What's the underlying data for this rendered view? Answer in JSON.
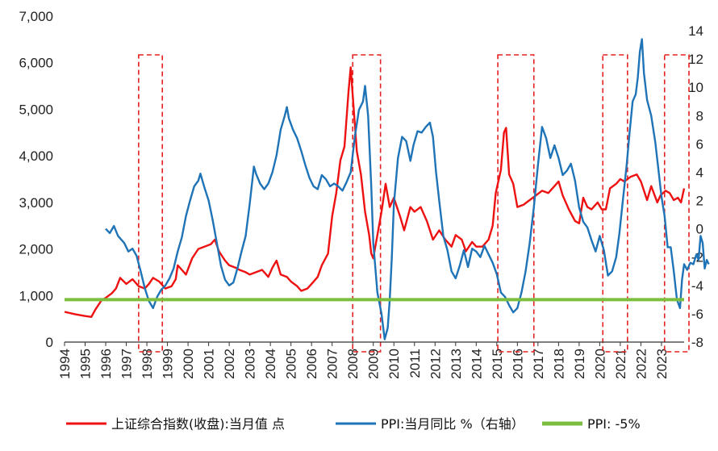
{
  "chart_data": {
    "type": "line",
    "title": "",
    "xlabel": "",
    "ylabel": "",
    "y2label": "",
    "x_ticks": [
      "1994",
      "1995",
      "1996",
      "1997",
      "1998",
      "1999",
      "2000",
      "2001",
      "2002",
      "2003",
      "2004",
      "2005",
      "2006",
      "2007",
      "2008",
      "2009",
      "2010",
      "2011",
      "2012",
      "2013",
      "2014",
      "2015",
      "2016",
      "2017",
      "2018",
      "2019",
      "2020",
      "2021",
      "2022",
      "2023"
    ],
    "x_range": [
      1994.0,
      2024.1
    ],
    "ylim": [
      0,
      7000
    ],
    "y_ticks": [
      "0",
      "1,000",
      "2,000",
      "3,000",
      "4,000",
      "5,000",
      "6,000",
      "7,000"
    ],
    "y2lim": [
      -8,
      14
    ],
    "y2_ticks": [
      "-8",
      "-6",
      "-4",
      "-2",
      "0",
      "2",
      "4",
      "6",
      "8",
      "10",
      "12",
      "14"
    ],
    "grid": false,
    "legend_position": "bottom",
    "colors": {
      "index": "#ee1111",
      "ppi": "#1f73b7",
      "ppi_line": "#7cbf3f",
      "box": "#e52020"
    },
    "series": [
      {
        "name": "上证综合指数(收盘):当月值 点",
        "axis": "left",
        "points": [
          [
            1994.0,
            650
          ],
          [
            1994.5,
            600
          ],
          [
            1995.0,
            560
          ],
          [
            1995.3,
            540
          ],
          [
            1995.5,
            700
          ],
          [
            1995.8,
            900
          ],
          [
            1996.0,
            950
          ],
          [
            1996.3,
            1050
          ],
          [
            1996.5,
            1150
          ],
          [
            1996.7,
            1380
          ],
          [
            1997.0,
            1250
          ],
          [
            1997.3,
            1350
          ],
          [
            1997.6,
            1200
          ],
          [
            1997.9,
            1150
          ],
          [
            1998.1,
            1250
          ],
          [
            1998.3,
            1380
          ],
          [
            1998.6,
            1300
          ],
          [
            1998.9,
            1150
          ],
          [
            1999.2,
            1200
          ],
          [
            1999.4,
            1350
          ],
          [
            1999.5,
            1650
          ],
          [
            1999.7,
            1550
          ],
          [
            1999.9,
            1450
          ],
          [
            2000.2,
            1800
          ],
          [
            2000.5,
            2000
          ],
          [
            2000.8,
            2050
          ],
          [
            2001.1,
            2100
          ],
          [
            2001.3,
            2200
          ],
          [
            2001.5,
            1950
          ],
          [
            2001.8,
            1750
          ],
          [
            2002.0,
            1650
          ],
          [
            2002.3,
            1600
          ],
          [
            2002.5,
            1550
          ],
          [
            2002.8,
            1500
          ],
          [
            2003.0,
            1450
          ],
          [
            2003.3,
            1500
          ],
          [
            2003.6,
            1550
          ],
          [
            2003.9,
            1400
          ],
          [
            2004.1,
            1600
          ],
          [
            2004.3,
            1750
          ],
          [
            2004.5,
            1450
          ],
          [
            2004.8,
            1400
          ],
          [
            2005.0,
            1300
          ],
          [
            2005.3,
            1200
          ],
          [
            2005.5,
            1100
          ],
          [
            2005.8,
            1150
          ],
          [
            2006.0,
            1250
          ],
          [
            2006.3,
            1400
          ],
          [
            2006.5,
            1650
          ],
          [
            2006.8,
            1900
          ],
          [
            2007.0,
            2700
          ],
          [
            2007.2,
            3200
          ],
          [
            2007.4,
            3900
          ],
          [
            2007.6,
            4200
          ],
          [
            2007.8,
            5400
          ],
          [
            2007.9,
            5900
          ],
          [
            2008.0,
            5300
          ],
          [
            2008.2,
            4100
          ],
          [
            2008.4,
            3600
          ],
          [
            2008.6,
            2800
          ],
          [
            2008.8,
            2300
          ],
          [
            2008.9,
            1900
          ],
          [
            2009.0,
            1800
          ],
          [
            2009.2,
            2300
          ],
          [
            2009.4,
            2800
          ],
          [
            2009.6,
            3400
          ],
          [
            2009.8,
            2900
          ],
          [
            2010.0,
            3100
          ],
          [
            2010.3,
            2700
          ],
          [
            2010.5,
            2400
          ],
          [
            2010.8,
            2900
          ],
          [
            2011.0,
            2800
          ],
          [
            2011.3,
            2900
          ],
          [
            2011.6,
            2600
          ],
          [
            2011.9,
            2200
          ],
          [
            2012.2,
            2400
          ],
          [
            2012.5,
            2200
          ],
          [
            2012.8,
            2050
          ],
          [
            2013.0,
            2300
          ],
          [
            2013.3,
            2200
          ],
          [
            2013.5,
            1950
          ],
          [
            2013.8,
            2150
          ],
          [
            2014.0,
            2050
          ],
          [
            2014.3,
            2050
          ],
          [
            2014.6,
            2200
          ],
          [
            2014.8,
            2500
          ],
          [
            2014.95,
            3200
          ],
          [
            2015.2,
            3700
          ],
          [
            2015.35,
            4500
          ],
          [
            2015.45,
            4600
          ],
          [
            2015.6,
            3600
          ],
          [
            2015.8,
            3400
          ],
          [
            2016.0,
            2900
          ],
          [
            2016.3,
            2950
          ],
          [
            2016.6,
            3050
          ],
          [
            2016.9,
            3150
          ],
          [
            2017.2,
            3250
          ],
          [
            2017.5,
            3200
          ],
          [
            2017.8,
            3350
          ],
          [
            2018.0,
            3450
          ],
          [
            2018.2,
            3150
          ],
          [
            2018.5,
            2850
          ],
          [
            2018.8,
            2600
          ],
          [
            2019.0,
            2550
          ],
          [
            2019.2,
            3100
          ],
          [
            2019.4,
            2900
          ],
          [
            2019.6,
            2850
          ],
          [
            2019.9,
            3000
          ],
          [
            2020.1,
            2850
          ],
          [
            2020.3,
            2850
          ],
          [
            2020.5,
            3300
          ],
          [
            2020.8,
            3400
          ],
          [
            2021.0,
            3500
          ],
          [
            2021.2,
            3450
          ],
          [
            2021.5,
            3550
          ],
          [
            2021.8,
            3600
          ],
          [
            2022.0,
            3450
          ],
          [
            2022.3,
            3050
          ],
          [
            2022.5,
            3350
          ],
          [
            2022.8,
            3000
          ],
          [
            2022.95,
            3150
          ],
          [
            2023.2,
            3250
          ],
          [
            2023.4,
            3200
          ],
          [
            2023.6,
            3050
          ],
          [
            2023.8,
            3100
          ],
          [
            2023.95,
            3000
          ],
          [
            2024.1,
            3300
          ]
        ]
      },
      {
        "name": "PPI:当月同比 %（右轴）",
        "axis": "right",
        "points": [
          [
            1996.0,
            0.0
          ],
          [
            1996.2,
            -0.3
          ],
          [
            1996.4,
            0.2
          ],
          [
            1996.6,
            -0.5
          ],
          [
            1996.9,
            -1.0
          ],
          [
            1997.1,
            -1.6
          ],
          [
            1997.3,
            -1.4
          ],
          [
            1997.5,
            -1.9
          ],
          [
            1997.7,
            -3.0
          ],
          [
            1997.9,
            -4.2
          ],
          [
            1998.1,
            -5.1
          ],
          [
            1998.3,
            -5.6
          ],
          [
            1998.5,
            -4.8
          ],
          [
            1998.7,
            -4.3
          ],
          [
            1998.9,
            -4.0
          ],
          [
            1999.1,
            -3.5
          ],
          [
            1999.3,
            -2.8
          ],
          [
            1999.5,
            -1.6
          ],
          [
            1999.7,
            -0.6
          ],
          [
            1999.9,
            0.9
          ],
          [
            2000.1,
            2.0
          ],
          [
            2000.3,
            3.0
          ],
          [
            2000.5,
            3.4
          ],
          [
            2000.6,
            3.9
          ],
          [
            2000.8,
            2.9
          ],
          [
            2001.0,
            2.0
          ],
          [
            2001.2,
            0.6
          ],
          [
            2001.4,
            -1.0
          ],
          [
            2001.6,
            -2.6
          ],
          [
            2001.8,
            -3.6
          ],
          [
            2002.0,
            -4.0
          ],
          [
            2002.2,
            -3.8
          ],
          [
            2002.4,
            -2.8
          ],
          [
            2002.6,
            -1.6
          ],
          [
            2002.8,
            -0.5
          ],
          [
            2003.0,
            1.8
          ],
          [
            2003.2,
            4.4
          ],
          [
            2003.3,
            3.9
          ],
          [
            2003.5,
            3.2
          ],
          [
            2003.7,
            2.8
          ],
          [
            2003.9,
            3.2
          ],
          [
            2004.1,
            4.0
          ],
          [
            2004.3,
            5.2
          ],
          [
            2004.5,
            7.0
          ],
          [
            2004.7,
            8.0
          ],
          [
            2004.8,
            8.6
          ],
          [
            2004.9,
            7.8
          ],
          [
            2005.1,
            7.0
          ],
          [
            2005.3,
            6.4
          ],
          [
            2005.5,
            5.5
          ],
          [
            2005.7,
            4.5
          ],
          [
            2005.9,
            3.6
          ],
          [
            2006.1,
            3.0
          ],
          [
            2006.3,
            2.8
          ],
          [
            2006.5,
            3.8
          ],
          [
            2006.7,
            3.5
          ],
          [
            2006.9,
            3.0
          ],
          [
            2007.1,
            3.2
          ],
          [
            2007.3,
            3.0
          ],
          [
            2007.5,
            2.7
          ],
          [
            2007.7,
            3.3
          ],
          [
            2007.9,
            4.0
          ],
          [
            2008.1,
            6.5
          ],
          [
            2008.3,
            8.4
          ],
          [
            2008.5,
            9.0
          ],
          [
            2008.6,
            10.1
          ],
          [
            2008.75,
            8.0
          ],
          [
            2008.9,
            3.0
          ],
          [
            2009.0,
            -1.0
          ],
          [
            2009.2,
            -4.5
          ],
          [
            2009.4,
            -6.0
          ],
          [
            2009.55,
            -7.8
          ],
          [
            2009.7,
            -7.0
          ],
          [
            2009.8,
            -5.0
          ],
          [
            2009.9,
            -2.0
          ],
          [
            2010.0,
            1.7
          ],
          [
            2010.2,
            5.0
          ],
          [
            2010.4,
            6.5
          ],
          [
            2010.6,
            6.2
          ],
          [
            2010.8,
            4.8
          ],
          [
            2010.95,
            5.9
          ],
          [
            2011.15,
            6.9
          ],
          [
            2011.35,
            6.8
          ],
          [
            2011.55,
            7.2
          ],
          [
            2011.75,
            7.5
          ],
          [
            2011.9,
            6.5
          ],
          [
            2012.05,
            4.0
          ],
          [
            2012.2,
            2.0
          ],
          [
            2012.4,
            -0.5
          ],
          [
            2012.6,
            -1.5
          ],
          [
            2012.8,
            -3.0
          ],
          [
            2013.0,
            -3.5
          ],
          [
            2013.2,
            -2.6
          ],
          [
            2013.4,
            -1.5
          ],
          [
            2013.6,
            -2.7
          ],
          [
            2013.8,
            -1.4
          ],
          [
            2014.0,
            -1.6
          ],
          [
            2014.2,
            -2.0
          ],
          [
            2014.4,
            -1.2
          ],
          [
            2014.6,
            -1.8
          ],
          [
            2014.8,
            -2.4
          ],
          [
            2015.0,
            -3.2
          ],
          [
            2015.2,
            -4.5
          ],
          [
            2015.4,
            -4.8
          ],
          [
            2015.6,
            -5.4
          ],
          [
            2015.8,
            -5.9
          ],
          [
            2016.0,
            -5.6
          ],
          [
            2016.2,
            -4.5
          ],
          [
            2016.4,
            -3.0
          ],
          [
            2016.6,
            -1.0
          ],
          [
            2016.8,
            1.5
          ],
          [
            2017.0,
            4.5
          ],
          [
            2017.2,
            7.2
          ],
          [
            2017.4,
            6.4
          ],
          [
            2017.6,
            5.0
          ],
          [
            2017.8,
            5.9
          ],
          [
            2018.0,
            5.0
          ],
          [
            2018.2,
            3.8
          ],
          [
            2018.4,
            4.1
          ],
          [
            2018.6,
            4.6
          ],
          [
            2018.8,
            3.4
          ],
          [
            2019.0,
            1.5
          ],
          [
            2019.2,
            0.5
          ],
          [
            2019.4,
            0.1
          ],
          [
            2019.6,
            -0.8
          ],
          [
            2019.8,
            -1.6
          ],
          [
            2020.0,
            -0.5
          ],
          [
            2020.2,
            -1.5
          ],
          [
            2020.4,
            -3.3
          ],
          [
            2020.6,
            -3.0
          ],
          [
            2020.8,
            -2.0
          ],
          [
            2020.95,
            -0.4
          ],
          [
            2021.1,
            1.7
          ],
          [
            2021.3,
            4.4
          ],
          [
            2021.45,
            6.8
          ],
          [
            2021.6,
            9.0
          ],
          [
            2021.75,
            9.5
          ],
          [
            2021.85,
            10.7
          ],
          [
            2021.95,
            12.5
          ],
          [
            2022.05,
            13.4
          ],
          [
            2022.15,
            11.0
          ],
          [
            2022.3,
            9.1
          ],
          [
            2022.5,
            8.0
          ],
          [
            2022.7,
            6.1
          ],
          [
            2022.85,
            4.2
          ],
          [
            2023.0,
            2.3
          ],
          [
            2023.15,
            0.9
          ],
          [
            2023.3,
            -1.3
          ],
          [
            2023.45,
            -1.3
          ],
          [
            2023.6,
            -3.0
          ],
          [
            2023.75,
            -5.0
          ],
          [
            2023.9,
            -5.6
          ],
          [
            2024.0,
            -3.6
          ],
          [
            2024.1,
            -2.5
          ],
          [
            2024.25,
            -2.9
          ],
          [
            2024.4,
            -2.4
          ],
          [
            2024.55,
            -2.5
          ],
          [
            2024.7,
            -1.8
          ],
          [
            2024.8,
            -2.2
          ],
          [
            2024.9,
            -0.5
          ],
          [
            2025.0,
            -1.0
          ],
          [
            2025.1,
            -2.8
          ],
          [
            2025.2,
            -2.2
          ],
          [
            2025.3,
            -2.5
          ]
        ]
      },
      {
        "name": "PPI:  -5%",
        "axis": "right",
        "points": [
          [
            1994.0,
            -5
          ],
          [
            2024.1,
            -5
          ]
        ]
      }
    ],
    "highlight_periods": [
      [
        1997.6,
        1998.75
      ],
      [
        2008.0,
        2009.35
      ],
      [
        2015.05,
        2016.8
      ],
      [
        2020.15,
        2021.35
      ],
      [
        2023.15,
        2025.3
      ]
    ]
  }
}
